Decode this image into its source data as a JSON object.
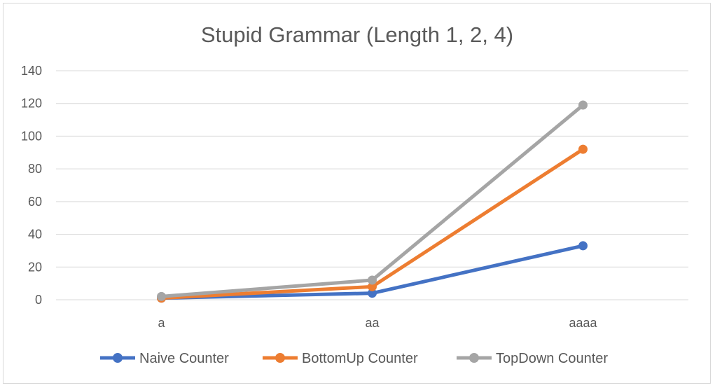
{
  "chart_data": {
    "type": "line",
    "title": "Stupid Grammar (Length 1, 2, 4)",
    "xlabel": "",
    "ylabel": "",
    "categories": [
      "a",
      "aa",
      "aaaa"
    ],
    "ylim": [
      0,
      140
    ],
    "yticks": [
      0,
      20,
      40,
      60,
      80,
      100,
      120,
      140
    ],
    "grid": true,
    "legend": "bottom",
    "series": [
      {
        "name": "Naive Counter",
        "color": "#4472c4",
        "values": [
          1,
          4,
          33
        ]
      },
      {
        "name": "BottomUp Counter",
        "color": "#ed7d31",
        "values": [
          1,
          8,
          92
        ]
      },
      {
        "name": "TopDown Counter",
        "color": "#a5a5a5",
        "values": [
          2,
          12,
          119
        ]
      }
    ]
  }
}
